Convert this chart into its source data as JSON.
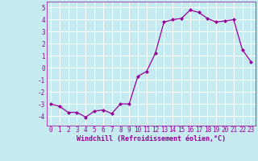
{
  "x": [
    0,
    1,
    2,
    3,
    4,
    5,
    6,
    7,
    8,
    9,
    10,
    11,
    12,
    13,
    14,
    15,
    16,
    17,
    18,
    19,
    20,
    21,
    22,
    23
  ],
  "y": [
    -3.0,
    -3.2,
    -3.7,
    -3.7,
    -4.1,
    -3.6,
    -3.5,
    -3.8,
    -3.0,
    -3.0,
    -0.7,
    -0.3,
    1.2,
    3.8,
    4.0,
    4.1,
    4.8,
    4.6,
    4.1,
    3.8,
    3.9,
    4.0,
    1.5,
    0.5
  ],
  "line_color": "#990099",
  "marker": "D",
  "marker_size": 2.0,
  "bg_color": "#c5eaf0",
  "grid_color": "#ffffff",
  "xlabel": "Windchill (Refroidissement éolien,°C)",
  "ylim": [
    -4.8,
    5.5
  ],
  "xlim": [
    -0.5,
    23.5
  ],
  "yticks": [
    -4,
    -3,
    -2,
    -1,
    0,
    1,
    2,
    3,
    4,
    5
  ],
  "xticks": [
    0,
    1,
    2,
    3,
    4,
    5,
    6,
    7,
    8,
    9,
    10,
    11,
    12,
    13,
    14,
    15,
    16,
    17,
    18,
    19,
    20,
    21,
    22,
    23
  ],
  "label_fontsize": 6.0,
  "tick_fontsize": 5.5
}
